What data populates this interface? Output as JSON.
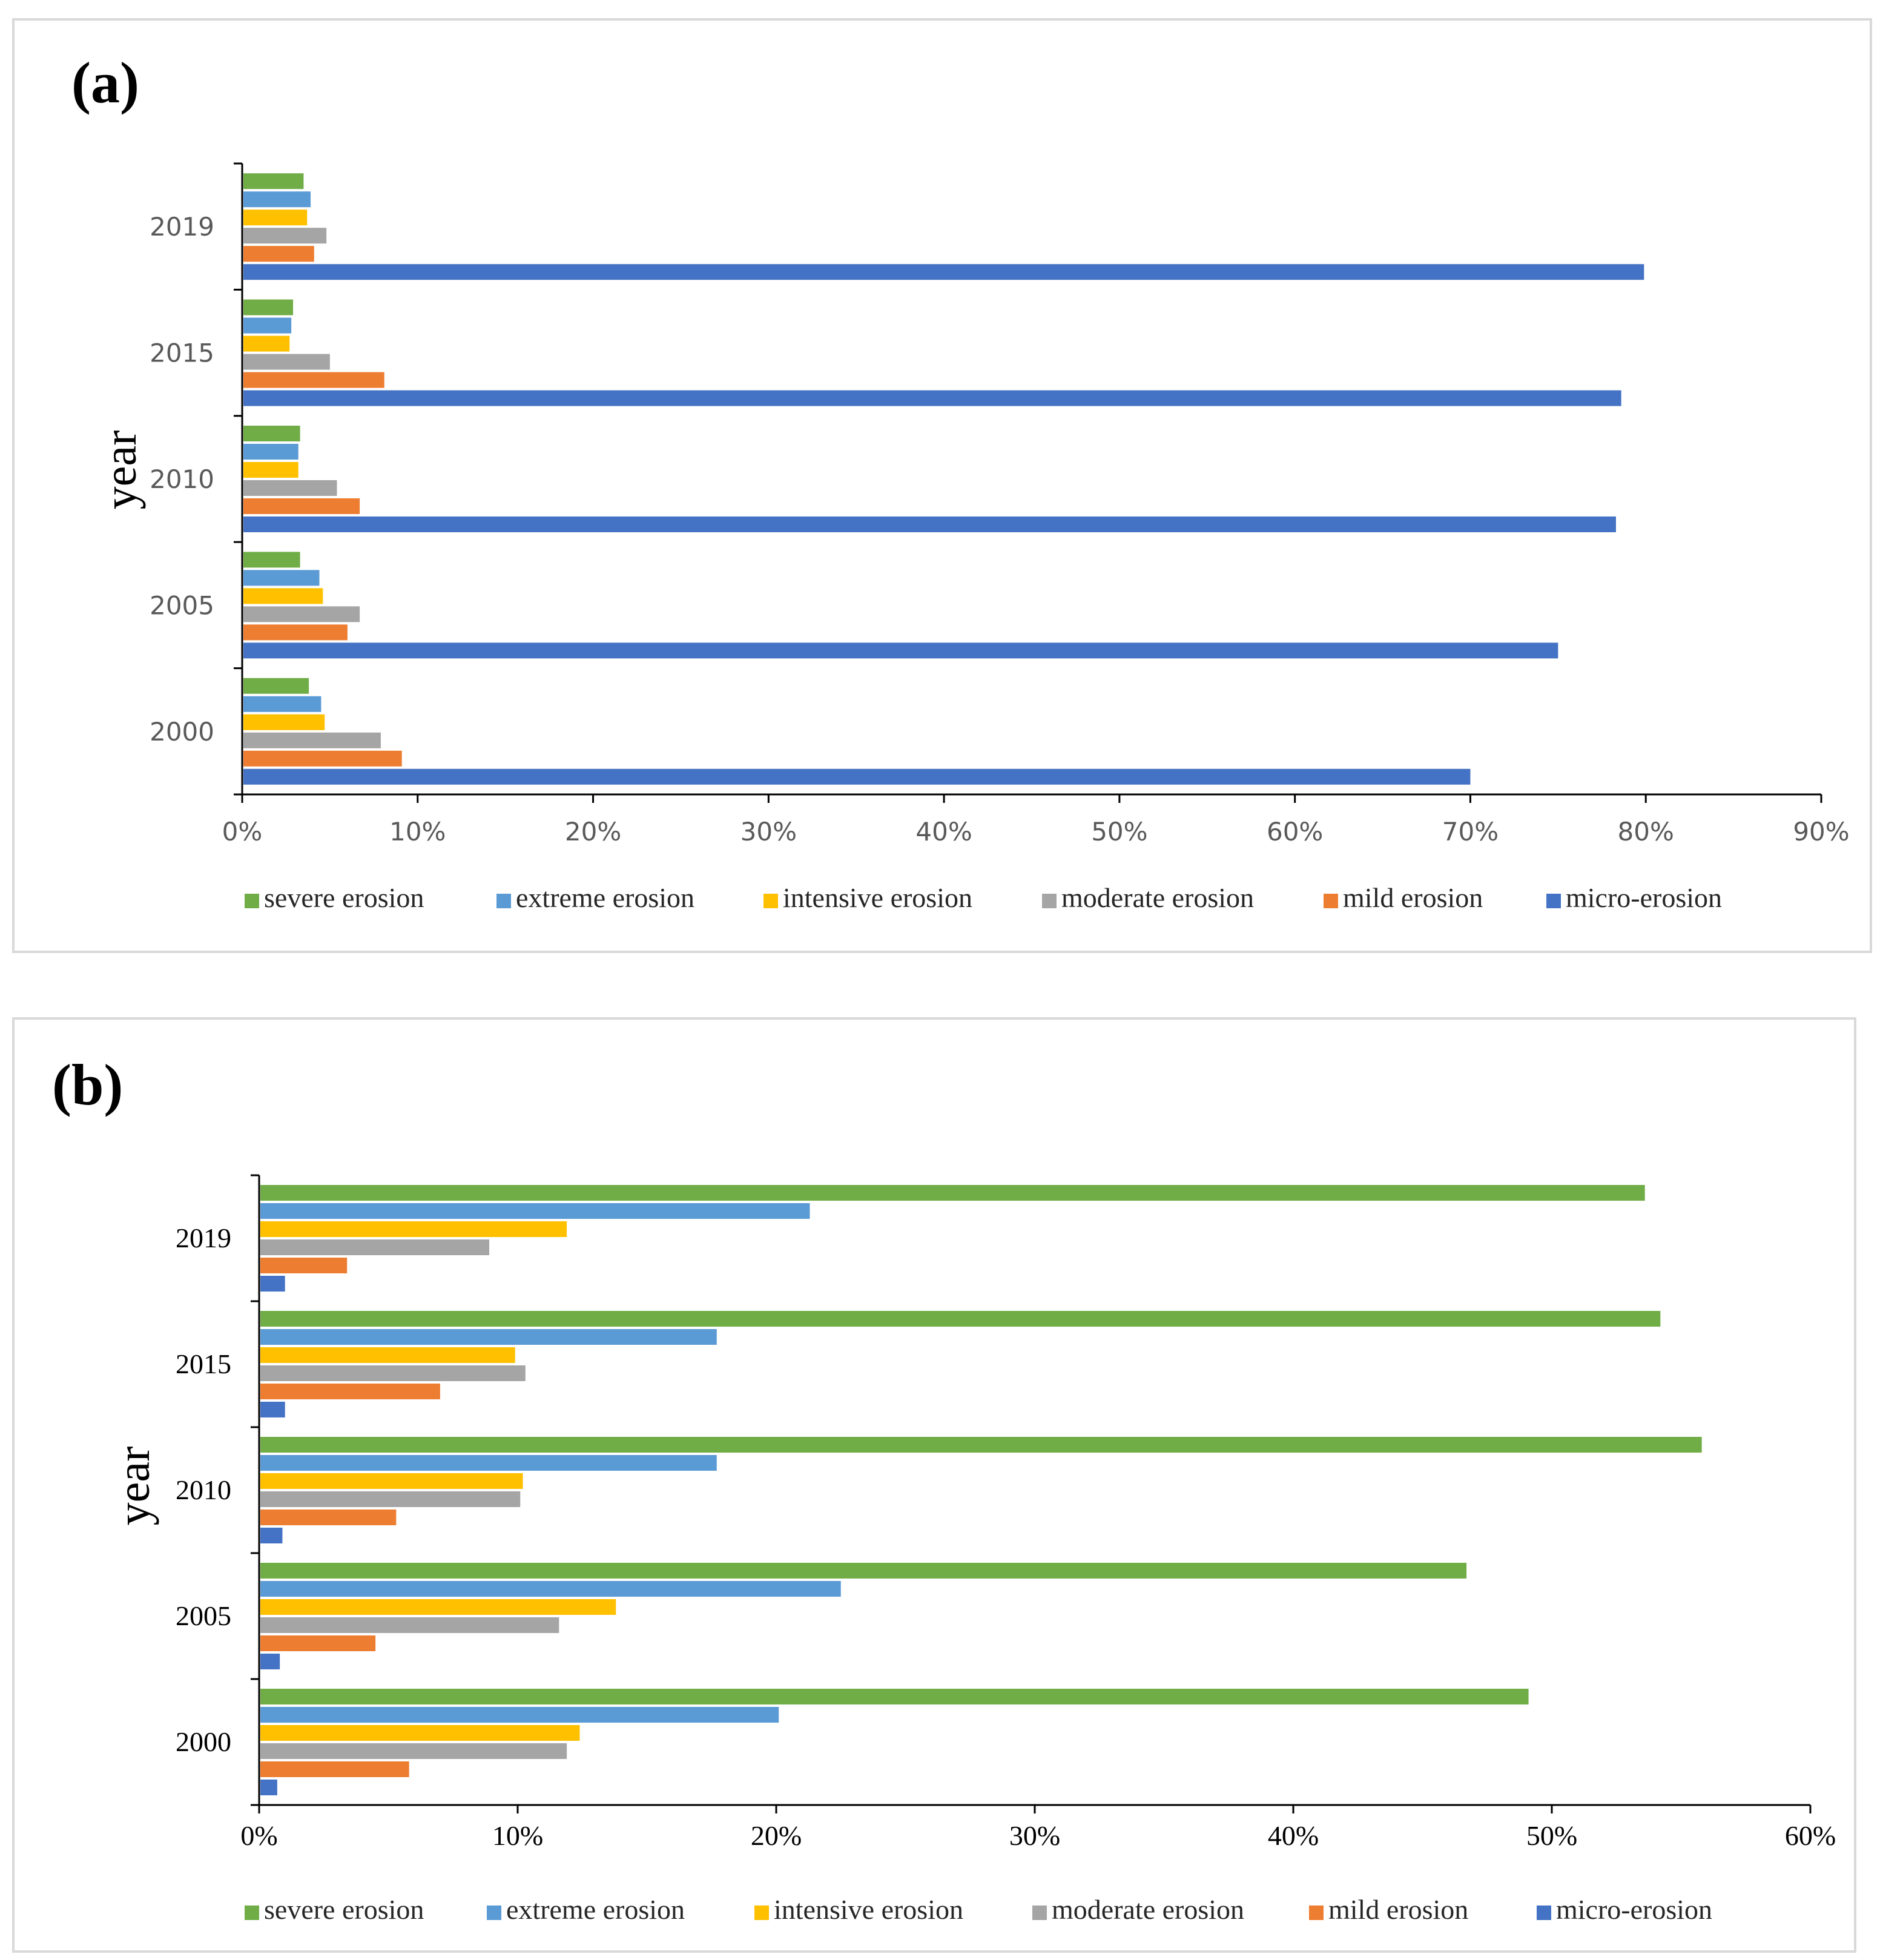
{
  "series_names": [
    "severe erosion",
    "extreme erosion",
    "intensive erosion",
    "moderate erosion",
    "mild erosion",
    "micro-erosion"
  ],
  "colors": {
    "severe erosion": "#70ad47",
    "extreme erosion": "#5b9bd5",
    "intensive erosion": "#ffc000",
    "moderate erosion": "#a5a5a5",
    "mild erosion": "#ed7d31",
    "micro-erosion": "#4472c4"
  },
  "chart_data": [
    {
      "panel": "(a)",
      "type": "bar",
      "orientation": "horizontal",
      "ylabel": "year",
      "categories": [
        "2000",
        "2005",
        "2010",
        "2015",
        "2019"
      ],
      "xlim": [
        0,
        90
      ],
      "xticks": [
        "0%",
        "10%",
        "20%",
        "30%",
        "40%",
        "50%",
        "60%",
        "70%",
        "80%",
        "90%"
      ],
      "legend_position": "bottom",
      "series": [
        {
          "name": "severe erosion",
          "values": [
            3.8,
            3.3,
            3.3,
            2.9,
            3.5
          ]
        },
        {
          "name": "extreme erosion",
          "values": [
            4.5,
            4.4,
            3.2,
            2.8,
            3.9
          ]
        },
        {
          "name": "intensive erosion",
          "values": [
            4.7,
            4.6,
            3.2,
            2.7,
            3.7
          ]
        },
        {
          "name": "moderate erosion",
          "values": [
            7.9,
            6.7,
            5.4,
            5.0,
            4.8
          ]
        },
        {
          "name": "mild erosion",
          "values": [
            9.1,
            6.0,
            6.7,
            8.1,
            4.1
          ]
        },
        {
          "name": "micro-erosion",
          "values": [
            70.0,
            75.0,
            78.3,
            78.6,
            79.9
          ]
        }
      ]
    },
    {
      "panel": "(b)",
      "type": "bar",
      "orientation": "horizontal",
      "ylabel": "year",
      "categories": [
        "2000",
        "2005",
        "2010",
        "2015",
        "2019"
      ],
      "xlim": [
        0,
        60
      ],
      "xticks": [
        "0%",
        "10%",
        "20%",
        "30%",
        "40%",
        "50%",
        "60%"
      ],
      "legend_position": "bottom",
      "series": [
        {
          "name": "severe erosion",
          "values": [
            49.1,
            46.7,
            55.8,
            54.2,
            53.6
          ]
        },
        {
          "name": "extreme erosion",
          "values": [
            20.1,
            22.5,
            17.7,
            17.7,
            21.3
          ]
        },
        {
          "name": "intensive erosion",
          "values": [
            12.4,
            13.8,
            10.2,
            9.9,
            11.9
          ]
        },
        {
          "name": "moderate erosion",
          "values": [
            11.9,
            11.6,
            10.1,
            10.3,
            8.9
          ]
        },
        {
          "name": "mild erosion",
          "values": [
            5.8,
            4.5,
            5.3,
            7.0,
            3.4
          ]
        },
        {
          "name": "micro-erosion",
          "values": [
            0.7,
            0.8,
            0.9,
            1.0,
            1.0
          ]
        }
      ]
    }
  ]
}
